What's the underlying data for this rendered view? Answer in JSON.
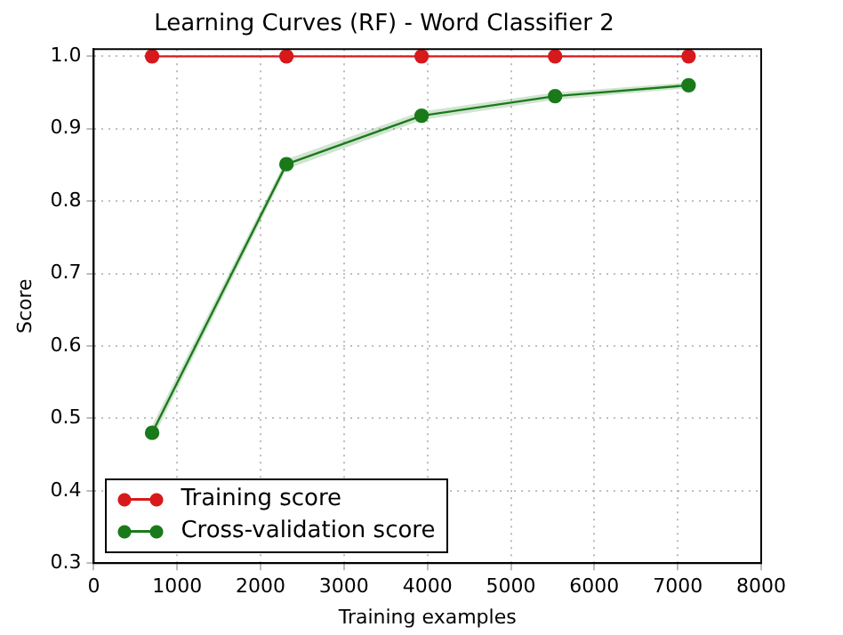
{
  "chart_data": {
    "type": "line",
    "title": "Learning Curves (RF) - Word Classifier 2",
    "xlabel": "Training examples",
    "ylabel": "Score",
    "x": [
      700,
      2310,
      3930,
      5530,
      7130
    ],
    "series": [
      {
        "name": "Training score",
        "color": "#d7191c",
        "values": [
          1.0,
          1.0,
          1.0,
          1.0,
          1.0
        ]
      },
      {
        "name": "Cross-validation score",
        "color": "#1a7a1a",
        "values": [
          0.48,
          0.851,
          0.918,
          0.945,
          0.96
        ],
        "lower": [
          0.47,
          0.844,
          0.912,
          0.94,
          0.956
        ],
        "upper": [
          0.49,
          0.858,
          0.924,
          0.95,
          0.964
        ]
      }
    ],
    "xlim": [
      0,
      8000
    ],
    "xticks": [
      0,
      1000,
      2000,
      3000,
      4000,
      5000,
      6000,
      7000,
      8000
    ],
    "ylim": [
      0.3,
      1.01
    ],
    "yticks": [
      0.3,
      0.4,
      0.5,
      0.6,
      0.7,
      0.8,
      0.9,
      {
        "value": 1,
        "label": "1.0"
      }
    ],
    "grid": true,
    "legend": "bottom left",
    "marker": "circle",
    "line_style": "solid"
  }
}
